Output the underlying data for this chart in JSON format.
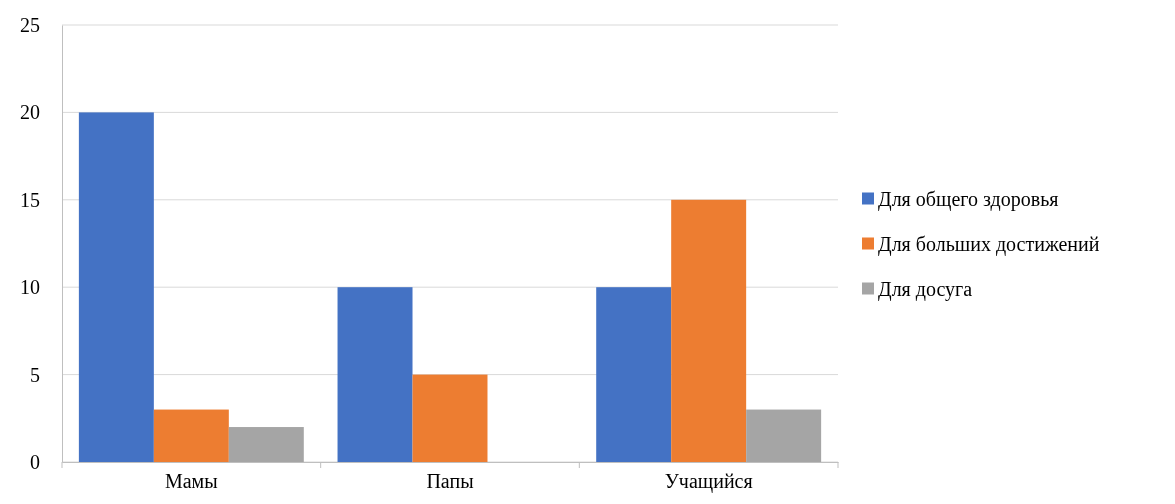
{
  "chart_data": {
    "type": "bar",
    "categories": [
      "Мамы",
      "Папы",
      "Учащийся"
    ],
    "series": [
      {
        "name": "Для общего здоровья",
        "color": "#4472c4",
        "values": [
          20,
          10,
          10
        ]
      },
      {
        "name": "Для больших достижений",
        "color": "#ed7d31",
        "values": [
          3,
          5,
          15
        ]
      },
      {
        "name": "Для досуга",
        "color": "#a5a5a5",
        "values": [
          2,
          0,
          3
        ]
      }
    ],
    "ylim": [
      0,
      25
    ],
    "yticks": [
      0,
      5,
      10,
      15,
      20,
      25
    ],
    "grid": "y",
    "legend": "right"
  }
}
